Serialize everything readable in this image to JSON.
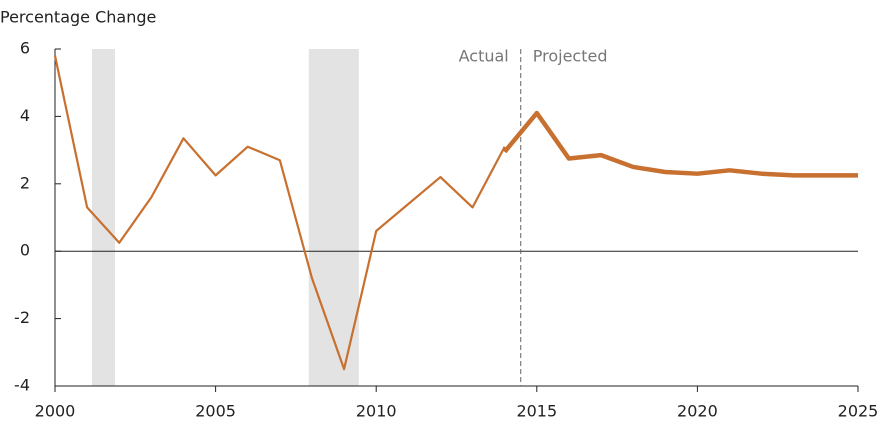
{
  "chart_data": {
    "type": "line",
    "ylabel": "Percentage Change",
    "x": [
      2000,
      2001,
      2002,
      2003,
      2004,
      2005,
      2006,
      2007,
      2008,
      2009,
      2010,
      2011,
      2012,
      2013,
      2014,
      2015,
      2016,
      2017,
      2018,
      2019,
      2020,
      2021,
      2022,
      2023,
      2024,
      2025
    ],
    "series": [
      {
        "name": "Actual",
        "color": "#c8702f",
        "width": 2.2,
        "values": [
          5.8,
          1.3,
          0.25,
          1.6,
          3.35,
          2.25,
          3.1,
          2.7,
          -0.8,
          -3.5,
          0.6,
          1.4,
          2.2,
          1.3,
          3.1,
          null,
          null,
          null,
          null,
          null,
          null,
          null,
          null,
          null,
          null,
          null
        ]
      },
      {
        "name": "Projected",
        "color": "#c8702f",
        "width": 4.5,
        "values": [
          null,
          null,
          null,
          null,
          null,
          null,
          null,
          null,
          null,
          null,
          null,
          null,
          null,
          null,
          2.95,
          4.1,
          2.75,
          2.85,
          2.5,
          2.35,
          2.3,
          2.4,
          2.3,
          2.25,
          2.25,
          2.25
        ]
      }
    ],
    "recessions": [
      [
        2001.15,
        2001.87
      ],
      [
        2007.9,
        2009.46
      ]
    ],
    "divider": 2014.5,
    "xlim": [
      2000,
      2025
    ],
    "xticks": [
      2000,
      2005,
      2010,
      2015,
      2020,
      2025
    ],
    "ylim": [
      -4,
      6
    ],
    "yticks": [
      -4,
      -2,
      0,
      2,
      4,
      6
    ]
  }
}
